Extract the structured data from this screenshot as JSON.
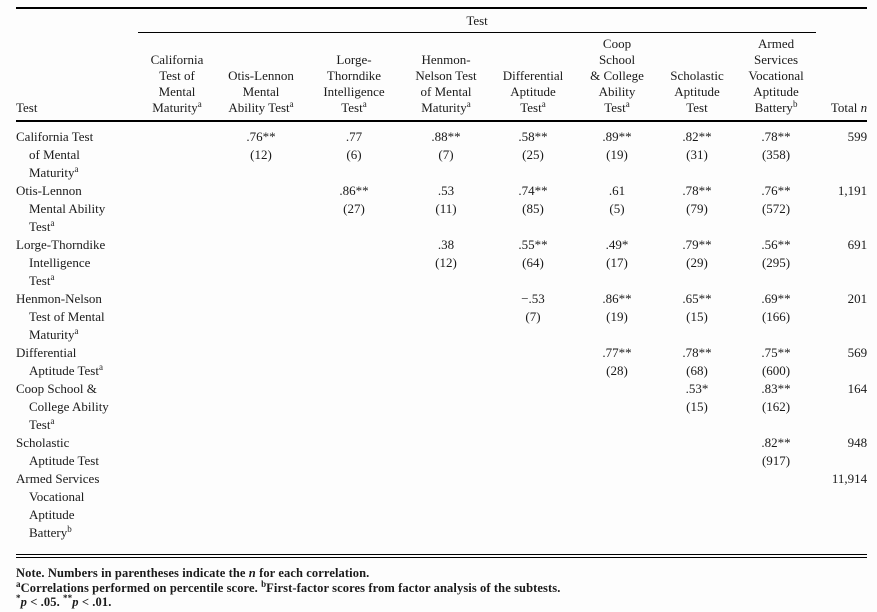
{
  "table": {
    "spanner_label": "Test",
    "stub_header": "Test",
    "total_header": {
      "text": "Total ",
      "italic": "n"
    },
    "columns": [
      {
        "lines": [
          "California",
          "Test of",
          "Mental",
          "Maturity"
        ],
        "sup": "a"
      },
      {
        "lines": [
          "Otis-Lennon",
          "Mental",
          "Ability Test"
        ],
        "sup": "a"
      },
      {
        "lines": [
          "Lorge-",
          "Thorndike",
          "Intelligence",
          "Test"
        ],
        "sup": "a"
      },
      {
        "lines": [
          "Henmon-",
          "Nelson Test",
          "of Mental",
          "Maturity"
        ],
        "sup": "a"
      },
      {
        "lines": [
          "Differential",
          "Aptitude",
          "Test"
        ],
        "sup": "a"
      },
      {
        "lines": [
          "Coop",
          "School",
          "& College",
          "Ability",
          "Test"
        ],
        "sup": "a"
      },
      {
        "lines": [
          "Scholastic",
          "Aptitude",
          "Test"
        ],
        "sup": ""
      },
      {
        "lines": [
          "Armed",
          "Services",
          "Vocational",
          "Aptitude",
          "Battery"
        ],
        "sup": "b"
      }
    ],
    "rows": [
      {
        "label_lines": [
          "California Test",
          "of Mental",
          "Maturity"
        ],
        "label_sup": "a",
        "cells": [
          null,
          {
            "r": ".76**",
            "n": "(12)"
          },
          {
            "r": ".77",
            "n": "(6)"
          },
          {
            "r": ".88**",
            "n": "(7)"
          },
          {
            "r": ".58**",
            "n": "(25)"
          },
          {
            "r": ".89**",
            "n": "(19)"
          },
          {
            "r": ".82**",
            "n": "(31)"
          },
          {
            "r": ".78**",
            "n": "(358)"
          }
        ],
        "total": "599"
      },
      {
        "label_lines": [
          "Otis-Lennon",
          "Mental Ability",
          "Test"
        ],
        "label_sup": "a",
        "cells": [
          null,
          null,
          {
            "r": ".86**",
            "n": "(27)"
          },
          {
            "r": ".53",
            "n": "(11)"
          },
          {
            "r": ".74**",
            "n": "(85)"
          },
          {
            "r": ".61",
            "n": "(5)"
          },
          {
            "r": ".78**",
            "n": "(79)"
          },
          {
            "r": ".76**",
            "n": "(572)"
          }
        ],
        "total": "1,191"
      },
      {
        "label_lines": [
          "Lorge-Thorndike",
          "Intelligence",
          "Test"
        ],
        "label_sup": "a",
        "cells": [
          null,
          null,
          null,
          {
            "r": ".38",
            "n": "(12)"
          },
          {
            "r": ".55**",
            "n": "(64)"
          },
          {
            "r": ".49*",
            "n": "(17)"
          },
          {
            "r": ".79**",
            "n": "(29)"
          },
          {
            "r": ".56**",
            "n": "(295)"
          }
        ],
        "total": "691"
      },
      {
        "label_lines": [
          "Henmon-Nelson",
          "Test of Mental",
          "Maturity"
        ],
        "label_sup": "a",
        "cells": [
          null,
          null,
          null,
          null,
          {
            "r": "−.53",
            "n": "(7)"
          },
          {
            "r": ".86**",
            "n": "(19)"
          },
          {
            "r": ".65**",
            "n": "(15)"
          },
          {
            "r": ".69**",
            "n": "(166)"
          }
        ],
        "total": "201"
      },
      {
        "label_lines": [
          "Differential",
          "Aptitude Test"
        ],
        "label_sup": "a",
        "cells": [
          null,
          null,
          null,
          null,
          null,
          {
            "r": ".77**",
            "n": "(28)"
          },
          {
            "r": ".78**",
            "n": "(68)"
          },
          {
            "r": ".75**",
            "n": "(600)"
          }
        ],
        "total": "569"
      },
      {
        "label_lines": [
          "Coop School &",
          "College Ability",
          "Test"
        ],
        "label_sup": "a",
        "cells": [
          null,
          null,
          null,
          null,
          null,
          null,
          {
            "r": ".53*",
            "n": "(15)"
          },
          {
            "r": ".83**",
            "n": "(162)"
          }
        ],
        "total": "164"
      },
      {
        "label_lines": [
          "Scholastic",
          "Aptitude Test"
        ],
        "label_sup": "",
        "cells": [
          null,
          null,
          null,
          null,
          null,
          null,
          null,
          {
            "r": ".82**",
            "n": "(917)"
          }
        ],
        "total": "948"
      },
      {
        "label_lines": [
          "Armed Services",
          "Vocational",
          "Aptitude",
          "Battery"
        ],
        "label_sup": "b",
        "cells": [
          null,
          null,
          null,
          null,
          null,
          null,
          null,
          null
        ],
        "total": "11,914"
      }
    ],
    "footnotes": [
      [
        {
          "text": "Note. Numbers in parentheses indicate the "
        },
        {
          "text": "n",
          "italic": true
        },
        {
          "text": " for each correlation."
        }
      ],
      [
        {
          "sup": "a"
        },
        {
          "text": "Correlations performed on percentile score. "
        },
        {
          "sup": "b"
        },
        {
          "text": "First-factor scores from factor analysis of the subtests."
        }
      ],
      [
        {
          "sup": "*"
        },
        {
          "text": "p",
          "italic": true
        },
        {
          "text": " < .05. "
        },
        {
          "sup": "**"
        },
        {
          "text": "p",
          "italic": true
        },
        {
          "text": " < .01."
        }
      ]
    ]
  }
}
